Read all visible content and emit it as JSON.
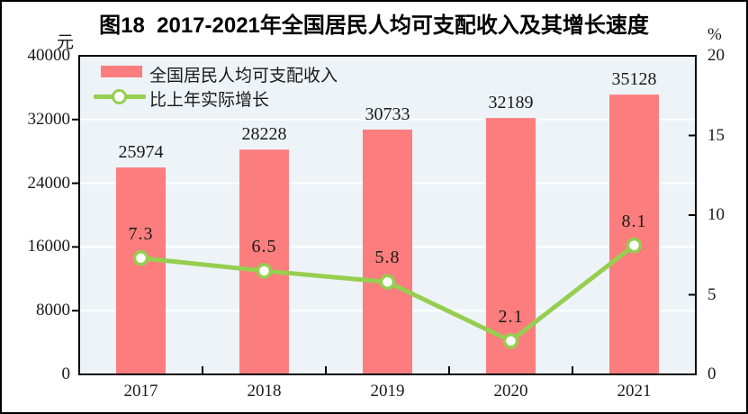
{
  "figure": {
    "title": "图18  2017-2021年全国居民人均可支配收入及其增长速度",
    "left_axis_unit": "元",
    "right_axis_unit": "%"
  },
  "legend": {
    "position": "top-left inside plot",
    "items": [
      {
        "label": "全国居民人均可支配收入",
        "type": "bar",
        "color": "#FC7D7D"
      },
      {
        "label": "比上年实际增长",
        "type": "line",
        "color": "#96CE50"
      }
    ]
  },
  "chart_data": {
    "type": "bar",
    "subtype": "bar-line combo, dual axis",
    "title": "图18  2017-2021年全国居民人均可支配收入及其增长速度",
    "categories": [
      "2017",
      "2018",
      "2019",
      "2020",
      "2021"
    ],
    "series": [
      {
        "name": "全国居民人均可支配收入",
        "type": "bar",
        "axis": "left",
        "unit": "元",
        "color": "#FC7D7D",
        "values": [
          25974,
          28228,
          30733,
          32189,
          35128
        ]
      },
      {
        "name": "比上年实际增长",
        "type": "line",
        "axis": "right",
        "unit": "%",
        "color": "#96CE50",
        "marker": "circle, white fill, green stroke",
        "values": [
          7.3,
          6.5,
          5.8,
          2.1,
          8.1
        ]
      }
    ],
    "left_axis": {
      "label": "元",
      "min": 0,
      "max": 40000,
      "tick_interval": 8000,
      "ticks": [
        0,
        8000,
        16000,
        24000,
        32000,
        40000
      ]
    },
    "right_axis": {
      "label": "%",
      "min": 0,
      "max": 20,
      "tick_interval": 5,
      "ticks": [
        0,
        5,
        10,
        15,
        20
      ]
    },
    "grid": "horizontal white gridlines at left-axis ticks (8000..32000)",
    "plot_background": "#EDF3F7",
    "plot_border_color": "#000000",
    "legend_position": "top-left inside plot"
  }
}
